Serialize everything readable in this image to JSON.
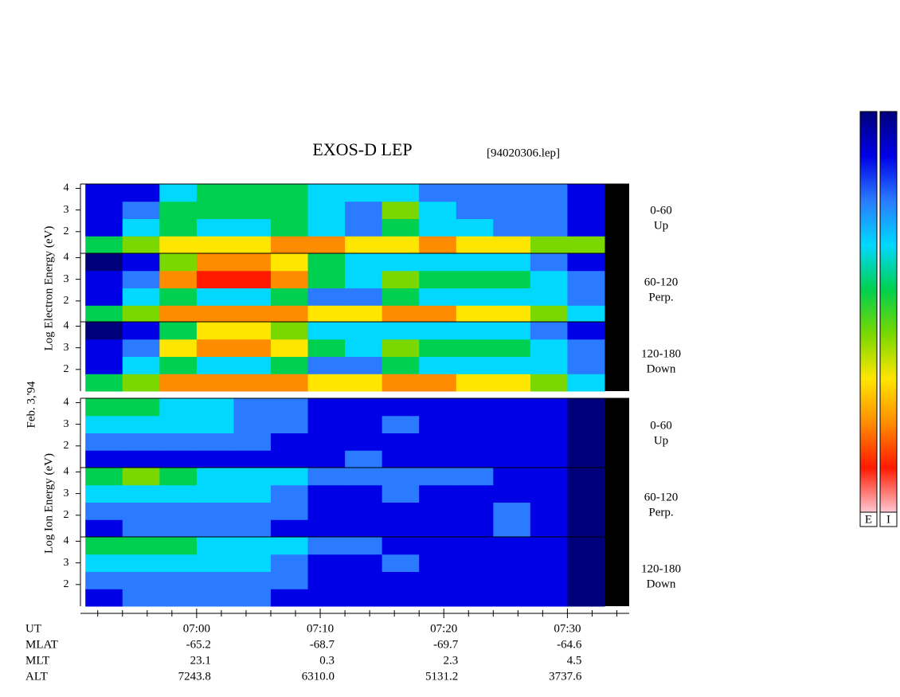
{
  "title": "EXOS-D LEP",
  "file_label": "[94020306.lep]",
  "date_label": "Feb. 3,'94",
  "electron_ylabel": "Log  Electron  Energy (eV)",
  "ion_ylabel": "Log  Ion  Energy (eV)",
  "colormap": [
    "#000000",
    "#00007a",
    "#0000e6",
    "#2a7bff",
    "#00d8ff",
    "#00d050",
    "#7ad800",
    "#ffe600",
    "#ff8c00",
    "#ff1a00",
    "#ffc8d2"
  ],
  "colorbar_labels": [
    "E",
    "I"
  ],
  "x_axis": {
    "xlim": [
      410.6,
      455
    ],
    "xticks": [
      {
        "value": 420,
        "label": "07:00"
      },
      {
        "value": 430,
        "label": "07:10"
      },
      {
        "value": 440,
        "label": "07:20"
      },
      {
        "value": 450,
        "label": "07:30"
      }
    ],
    "xminorticks": [
      412,
      414,
      416,
      418,
      422,
      424,
      426,
      428,
      432,
      434,
      436,
      438,
      442,
      444,
      446,
      448,
      452,
      454
    ],
    "bins": [
      411,
      414,
      417,
      420,
      423,
      426,
      429,
      432,
      435,
      438,
      441,
      444,
      447,
      450,
      453
    ]
  },
  "orbit_table": {
    "labels": [
      "UT",
      "MLAT",
      "MLT",
      "ALT"
    ],
    "rows": [
      [
        "-65.2",
        "-68.7",
        "-69.7",
        "-64.6"
      ],
      [
        "23.1",
        "0.3",
        "2.3",
        "4.5"
      ],
      [
        "7243.8",
        "6310.0",
        "5131.2",
        "3737.6"
      ]
    ]
  },
  "chart_data": [
    {
      "type": "heatmap",
      "species": "electron",
      "side_label": [
        "0-60",
        "Up"
      ],
      "ylim": [
        1,
        4.2
      ],
      "yticks": [
        2,
        3,
        4
      ],
      "y_bins": [
        1,
        1.8,
        2.6,
        3.4,
        4.2
      ],
      "values": [
        [
          5,
          6,
          7,
          7,
          7,
          8,
          8,
          7,
          7,
          8,
          7,
          7,
          6,
          6
        ],
        [
          2,
          4,
          5,
          4,
          4,
          5,
          4,
          3,
          5,
          4,
          4,
          3,
          3,
          2
        ],
        [
          2,
          3,
          5,
          5,
          5,
          5,
          4,
          3,
          6,
          4,
          3,
          3,
          3,
          2
        ],
        [
          2,
          2,
          4,
          5,
          5,
          5,
          4,
          4,
          4,
          3,
          3,
          3,
          3,
          2
        ]
      ]
    },
    {
      "type": "heatmap",
      "species": "electron",
      "side_label": [
        "60-120",
        "Perp."
      ],
      "ylim": [
        1,
        4.2
      ],
      "yticks": [
        2,
        3,
        4
      ],
      "y_bins": [
        1,
        1.8,
        2.6,
        3.4,
        4.2
      ],
      "values": [
        [
          5,
          6,
          8,
          8,
          8,
          8,
          7,
          7,
          8,
          8,
          7,
          7,
          6,
          4
        ],
        [
          2,
          4,
          5,
          4,
          4,
          5,
          3,
          3,
          5,
          4,
          4,
          4,
          4,
          3
        ],
        [
          2,
          3,
          8,
          9,
          9,
          8,
          5,
          4,
          6,
          5,
          5,
          5,
          4,
          3
        ],
        [
          1,
          2,
          6,
          8,
          8,
          7,
          5,
          4,
          4,
          4,
          4,
          4,
          3,
          2
        ]
      ]
    },
    {
      "type": "heatmap",
      "species": "electron",
      "side_label": [
        "120-180",
        "Down"
      ],
      "ylim": [
        1,
        4.2
      ],
      "yticks": [
        2,
        3,
        4
      ],
      "y_bins": [
        1,
        1.8,
        2.6,
        3.4,
        4.2
      ],
      "values": [
        [
          5,
          6,
          8,
          8,
          8,
          8,
          7,
          7,
          8,
          8,
          7,
          7,
          6,
          4
        ],
        [
          2,
          4,
          5,
          4,
          4,
          5,
          3,
          3,
          5,
          4,
          4,
          4,
          4,
          3
        ],
        [
          2,
          3,
          7,
          8,
          8,
          7,
          5,
          4,
          6,
          5,
          5,
          5,
          4,
          3
        ],
        [
          1,
          2,
          5,
          7,
          7,
          6,
          4,
          4,
          4,
          4,
          4,
          4,
          3,
          2
        ]
      ]
    },
    {
      "type": "heatmap",
      "species": "ion",
      "side_label": [
        "0-60",
        "Up"
      ],
      "ylim": [
        1,
        4.2
      ],
      "yticks": [
        2,
        3,
        4
      ],
      "y_bins": [
        1,
        1.8,
        2.6,
        3.4,
        4.2
      ],
      "values": [
        [
          2,
          2,
          2,
          2,
          2,
          2,
          2,
          3,
          2,
          2,
          2,
          2,
          2,
          1
        ],
        [
          3,
          3,
          3,
          3,
          3,
          2,
          2,
          2,
          2,
          2,
          2,
          2,
          2,
          1
        ],
        [
          4,
          4,
          4,
          4,
          3,
          3,
          2,
          2,
          3,
          2,
          2,
          2,
          2,
          1
        ],
        [
          5,
          5,
          4,
          4,
          3,
          3,
          2,
          2,
          2,
          2,
          2,
          2,
          2,
          1
        ]
      ]
    },
    {
      "type": "heatmap",
      "species": "ion",
      "side_label": [
        "60-120",
        "Perp."
      ],
      "ylim": [
        1,
        4.2
      ],
      "yticks": [
        2,
        3,
        4
      ],
      "y_bins": [
        1,
        1.8,
        2.6,
        3.4,
        4.2
      ],
      "values": [
        [
          2,
          3,
          3,
          3,
          3,
          2,
          2,
          2,
          2,
          2,
          2,
          3,
          2,
          1
        ],
        [
          3,
          3,
          3,
          3,
          3,
          3,
          2,
          2,
          2,
          2,
          2,
          3,
          2,
          1
        ],
        [
          4,
          4,
          4,
          4,
          4,
          3,
          2,
          2,
          3,
          2,
          2,
          2,
          2,
          1
        ],
        [
          5,
          6,
          5,
          4,
          4,
          4,
          3,
          3,
          3,
          3,
          3,
          2,
          2,
          1
        ]
      ]
    },
    {
      "type": "heatmap",
      "species": "ion",
      "side_label": [
        "120-180",
        "Down"
      ],
      "ylim": [
        1,
        4.2
      ],
      "yticks": [
        2,
        3,
        4
      ],
      "y_bins": [
        1,
        1.8,
        2.6,
        3.4,
        4.2
      ],
      "values": [
        [
          2,
          3,
          3,
          3,
          3,
          2,
          2,
          2,
          2,
          2,
          2,
          2,
          2,
          1
        ],
        [
          3,
          3,
          3,
          3,
          3,
          3,
          2,
          2,
          2,
          2,
          2,
          2,
          2,
          1
        ],
        [
          4,
          4,
          4,
          4,
          4,
          3,
          2,
          2,
          3,
          2,
          2,
          2,
          2,
          1
        ],
        [
          5,
          5,
          5,
          4,
          4,
          4,
          3,
          3,
          2,
          2,
          2,
          2,
          2,
          1
        ]
      ]
    }
  ]
}
